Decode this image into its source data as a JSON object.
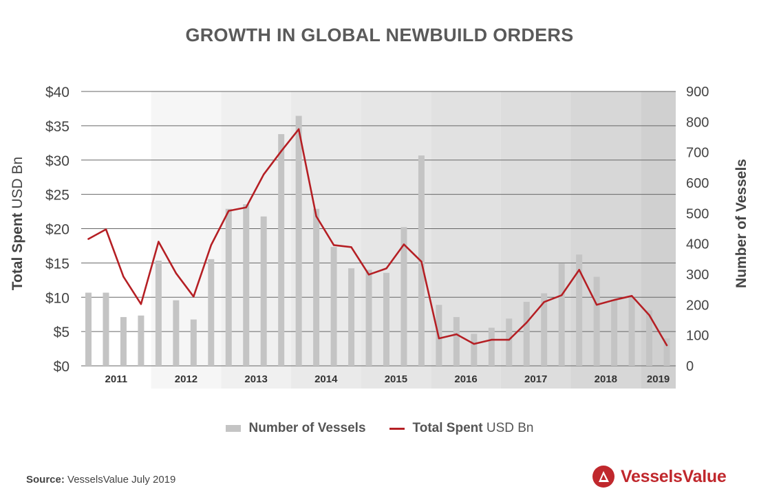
{
  "title": "GROWTH IN GLOBAL NEWBUILD ORDERS",
  "source": {
    "label": "Source:",
    "text": "VesselsValue July 2019"
  },
  "brand": {
    "name": "VesselsValue",
    "logo_icon": "triangle-in-circle-icon",
    "color": "#c0282d"
  },
  "legend": {
    "bars": "Number of Vessels",
    "line_bold": "Total Spent",
    "line_rest": "USD Bn",
    "position": "bottom-center"
  },
  "chart_data": {
    "type": "bar",
    "title": "GROWTH IN GLOBAL NEWBUILD ORDERS",
    "ylabel_left": {
      "bold": "Total Spent",
      "rest": "USD Bn"
    },
    "ylabel_right": "Number of Vessels",
    "ylim_left": [
      0,
      40
    ],
    "ylim_right": [
      0,
      900
    ],
    "yticks_left": [
      "$0",
      "$5",
      "$10",
      "$15",
      "$20",
      "$25",
      "$30",
      "$35",
      "$40"
    ],
    "yticks_right": [
      "0",
      "100",
      "200",
      "300",
      "400",
      "500",
      "600",
      "700",
      "800",
      "900"
    ],
    "grid": true,
    "years": [
      "2011",
      "2012",
      "2013",
      "2014",
      "2015",
      "2016",
      "2017",
      "2018",
      "2019"
    ],
    "year_months": [
      12,
      12,
      12,
      12,
      12,
      12,
      12,
      12,
      6
    ],
    "year_shades": [
      "#ffffff",
      "#f6f6f6",
      "#f0f0f0",
      "#eaeaea",
      "#e6e6e6",
      "#e1e1e1",
      "#dddddd",
      "#d7d7d7",
      "#d0d0d0"
    ],
    "colors": {
      "bars": "#c4c4c4",
      "line": "#b51f24",
      "grid": "#666666"
    },
    "series": [
      {
        "name": "Number of Vessels",
        "type": "bar",
        "axis": "right",
        "values": [
          240,
          240,
          160,
          165,
          345,
          215,
          152,
          350,
          515,
          530,
          490,
          760,
          820,
          515,
          390,
          320,
          315,
          305,
          455,
          690,
          200,
          160,
          105,
          125,
          155,
          210,
          238,
          335,
          365,
          292,
          218,
          225,
          182,
          90
        ]
      },
      {
        "name": "Total Spent USD Bn",
        "type": "line",
        "axis": "left",
        "values": [
          18.5,
          19.9,
          13.0,
          9.0,
          18.1,
          13.5,
          10.1,
          17.6,
          22.6,
          23.1,
          27.9,
          31.3,
          34.5,
          21.8,
          17.6,
          17.3,
          13.3,
          14.2,
          17.7,
          15.2,
          4.0,
          4.6,
          3.2,
          3.8,
          3.8,
          6.3,
          9.3,
          10.3,
          14.0,
          8.9,
          9.6,
          10.2,
          7.4,
          3.0
        ]
      }
    ]
  }
}
